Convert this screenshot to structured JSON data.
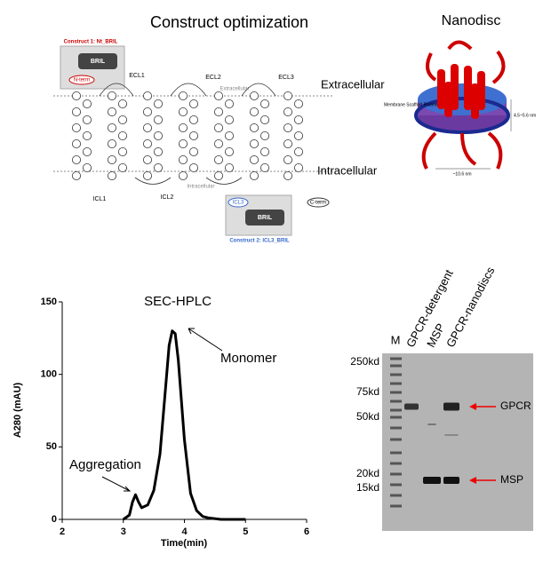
{
  "construct_panel": {
    "title": "Construct optimization",
    "construct1": "Construct 1: Nt_BRIL",
    "bril1": "BRIL",
    "nterm": "N-term",
    "ecl": [
      "ECL1",
      "ECL2",
      "ECL3"
    ],
    "icl": [
      "ICL1",
      "ICL2",
      "ICL3"
    ],
    "extracellular_small": "Extracellular",
    "intracellular_small": "Intracellular",
    "extracellular": "Extracellular",
    "intracellular": "Intracellular",
    "bril2": "BRIL",
    "cterm": "C-term",
    "construct2": "Construct 2: ICL3_BRIL"
  },
  "nanodisc_panel": {
    "title": "Nanodisc",
    "msp_label": "Membrane Scaffold Protein",
    "height_label": "4.5~5.6 nm",
    "width_label": "~10.6 nm"
  },
  "chart_data": {
    "type": "line",
    "title": "SEC-HPLC",
    "x_label": "Time(min)",
    "y_label": "A280 (mAU)",
    "x": [
      3.0,
      3.1,
      3.15,
      3.2,
      3.25,
      3.3,
      3.4,
      3.5,
      3.6,
      3.7,
      3.75,
      3.8,
      3.85,
      3.9,
      4.0,
      4.1,
      4.2,
      4.3,
      4.4,
      4.6,
      4.8,
      5.0
    ],
    "values": [
      0,
      3,
      12,
      17,
      12,
      8,
      10,
      20,
      45,
      95,
      120,
      130,
      128,
      110,
      55,
      18,
      6,
      2,
      1,
      0,
      0,
      0
    ],
    "color": "#000000",
    "xlim": [
      2,
      6
    ],
    "ylim": [
      0,
      150
    ],
    "xticks": [
      2,
      3,
      4,
      5,
      6
    ],
    "yticks": [
      0,
      50,
      100,
      150
    ],
    "annotations": [
      "Aggregation",
      "Monomer"
    ]
  },
  "gel_panel": {
    "lanes": [
      "M",
      "GPCR-detergent",
      "MSP",
      "GPCR-nanodiscs"
    ],
    "markers": [
      "250kd",
      "75kd",
      "50kd",
      "20kd",
      "15kd"
    ],
    "band_labels": [
      "GPCR",
      "MSP"
    ]
  }
}
